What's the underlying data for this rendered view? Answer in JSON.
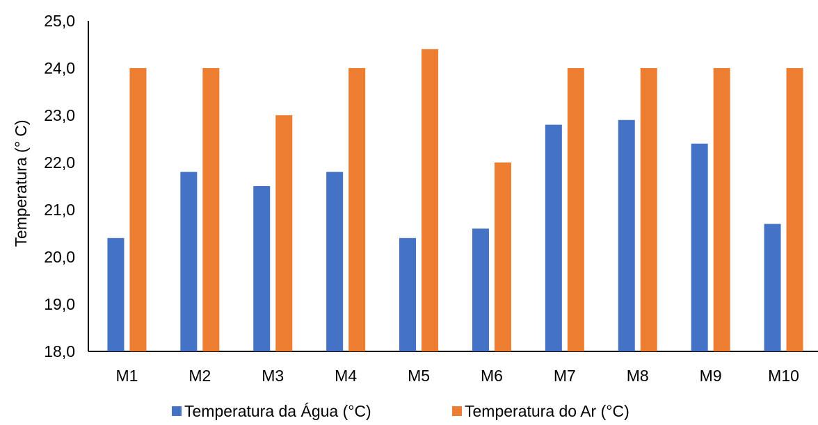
{
  "chart_data": {
    "type": "bar",
    "title": "",
    "xlabel": "",
    "ylabel": "Temperatura (° C)",
    "ylim": [
      18.0,
      25.0
    ],
    "yticks": [
      "18,0",
      "19,0",
      "20,0",
      "21,0",
      "22,0",
      "23,0",
      "24,0",
      "25,0"
    ],
    "categories": [
      "M1",
      "M2",
      "M3",
      "M4",
      "M5",
      "M6",
      "M7",
      "M8",
      "M9",
      "M10"
    ],
    "series": [
      {
        "name": "Temperatura da Água (°C)",
        "color": "#4472C4",
        "values": [
          20.4,
          21.8,
          21.5,
          21.8,
          20.4,
          20.6,
          22.8,
          22.9,
          22.4,
          20.7
        ]
      },
      {
        "name": "Temperatura do Ar (°C)",
        "color": "#ED7D31",
        "values": [
          24.0,
          24.0,
          23.0,
          24.0,
          24.4,
          22.0,
          24.0,
          24.0,
          24.0,
          24.0
        ]
      }
    ],
    "grid": false,
    "legend": "bottom"
  }
}
